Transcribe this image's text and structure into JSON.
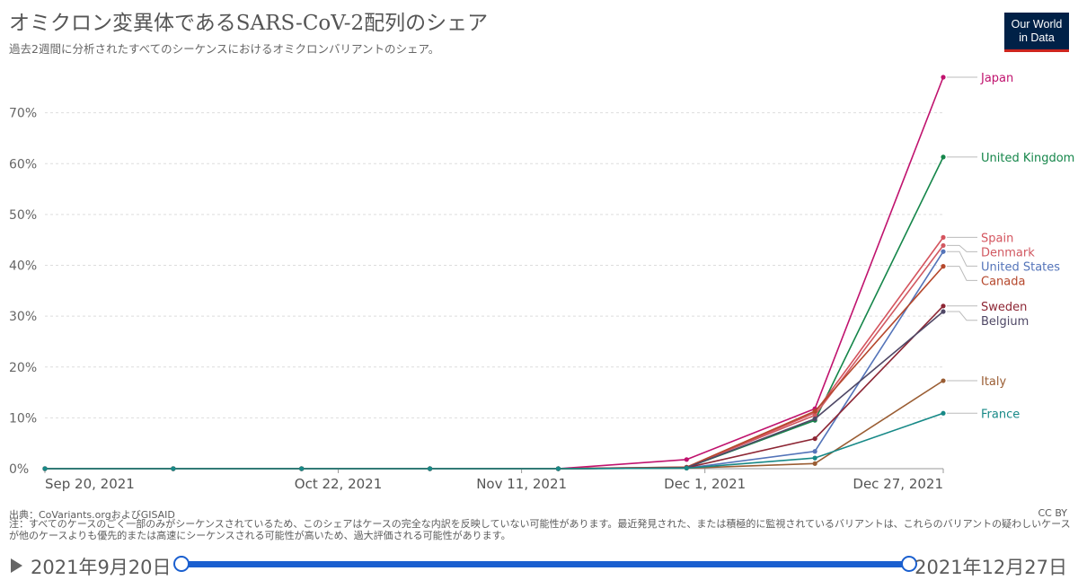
{
  "header": {
    "title": "オミクロン変異体であるSARS-CoV-2配列のシェア",
    "subtitle": "過去2週間に分析されたすべてのシーケンスにおけるオミクロンバリアントのシェア。"
  },
  "logo": {
    "line1": "Our World",
    "line2": "in Data"
  },
  "footer": {
    "source": "出典：CoVariants.orgおよびGISAID",
    "license": "CC BY",
    "note": "注：すべてのケースのごく一部のみがシーケンスされているため、このシェアはケースの完全な内訳を反映していない可能性があります。最近発見された、または積極的に監視されているバリアントは、これらのバリアントの疑わしいケースが他のケースよりも優先的または高速にシーケンスされる可能性が高いため、過大評価される可能性があります。"
  },
  "timeline": {
    "start_label": "2021年9月20日",
    "end_label": "2021年12月27日"
  },
  "chart_data": {
    "type": "line",
    "x": [
      "2021-09-20",
      "2021-10-04",
      "2021-10-18",
      "2021-11-01",
      "2021-11-15",
      "2021-11-29",
      "2021-12-13",
      "2021-12-27"
    ],
    "x_tick_labels": [
      {
        "date": "2021-09-20",
        "label": "Sep 20, 2021"
      },
      {
        "date": "2021-10-22",
        "label": "Oct 22, 2021"
      },
      {
        "date": "2021-11-11",
        "label": "Nov 11, 2021"
      },
      {
        "date": "2021-12-01",
        "label": "Dec 1, 2021"
      },
      {
        "date": "2021-12-27",
        "label": "Dec 27, 2021"
      }
    ],
    "y_ticks": [
      0,
      10,
      20,
      30,
      40,
      50,
      60,
      70
    ],
    "y_tick_labels": [
      "0%",
      "10%",
      "20%",
      "30%",
      "40%",
      "50%",
      "60%",
      "70%"
    ],
    "ylim": [
      0,
      77
    ],
    "grid": "horizontal dashed",
    "legend": "right",
    "series": [
      {
        "name": "Japan",
        "color": "#c0136e",
        "values": [
          0,
          0,
          0,
          0,
          0,
          1.8,
          11.8,
          77
        ]
      },
      {
        "name": "United Kingdom",
        "color": "#15864a",
        "values": [
          0,
          0,
          0,
          0,
          0,
          0.2,
          9.5,
          61.3
        ]
      },
      {
        "name": "Spain",
        "color": "#d4545e",
        "values": [
          0,
          0,
          0,
          0,
          0,
          0.2,
          11.0,
          45.5
        ]
      },
      {
        "name": "Denmark",
        "color": "#d15861",
        "values": [
          0,
          0,
          0,
          0,
          0,
          0.3,
          10.5,
          43.9
        ]
      },
      {
        "name": "United States",
        "color": "#5474b9",
        "values": [
          0,
          0,
          0,
          0,
          0,
          0.1,
          3.4,
          42.7
        ]
      },
      {
        "name": "Canada",
        "color": "#b5472b",
        "values": [
          0,
          0,
          0,
          0,
          0,
          0.3,
          11.3,
          39.8
        ]
      },
      {
        "name": "Sweden",
        "color": "#8d2634",
        "values": [
          0,
          0,
          0,
          0,
          0,
          0.2,
          5.9,
          32.0
        ]
      },
      {
        "name": "Belgium",
        "color": "#4f4866",
        "values": [
          0,
          0,
          0,
          0,
          0,
          0.2,
          9.8,
          30.9
        ]
      },
      {
        "name": "Italy",
        "color": "#9a5d33",
        "values": [
          0,
          0,
          0,
          0,
          0,
          0.1,
          1.0,
          17.3
        ]
      },
      {
        "name": "France",
        "color": "#178987",
        "values": [
          0,
          0,
          0,
          0,
          0,
          0.1,
          2.1,
          10.9
        ]
      }
    ]
  }
}
